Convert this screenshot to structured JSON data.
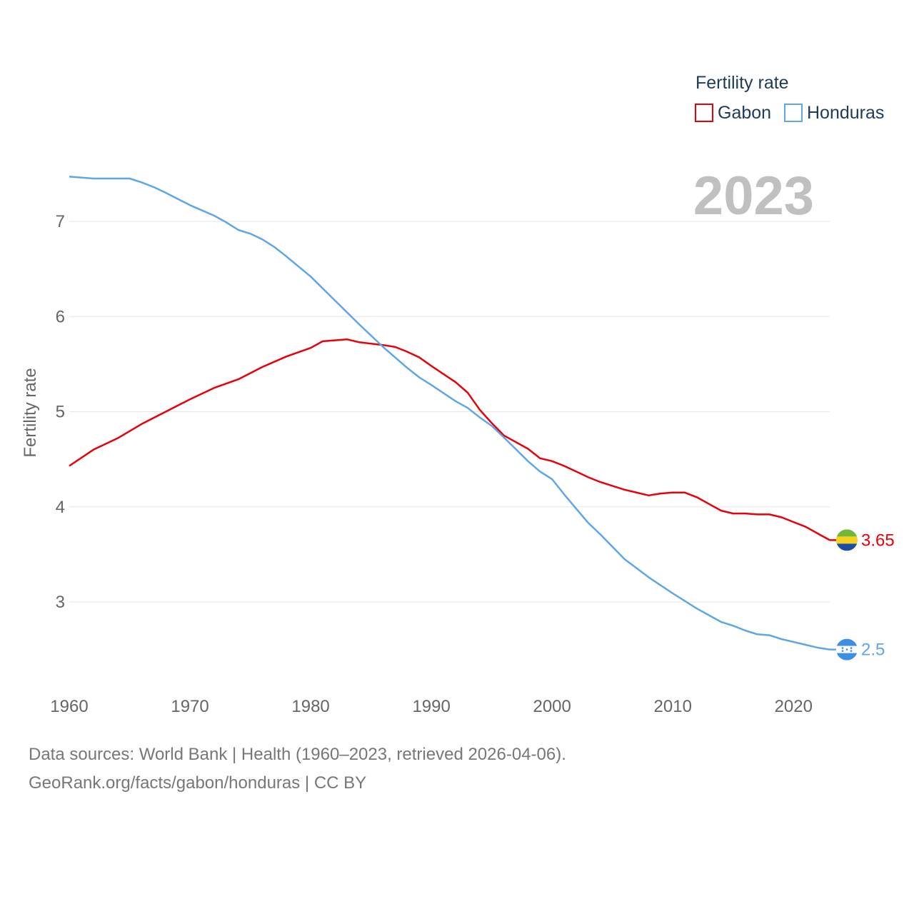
{
  "chart_data": {
    "type": "line",
    "title": "Fertility rate",
    "xlabel": "",
    "ylabel": "Fertility rate",
    "xlim": [
      1960,
      2023
    ],
    "ylim": [
      2.3,
      7.6
    ],
    "year_label": "2023",
    "x_ticks": [
      1960,
      1970,
      1980,
      1990,
      2000,
      2010,
      2020
    ],
    "y_ticks": [
      3,
      4,
      5,
      6,
      7
    ],
    "x_tick_labels": [
      "1960",
      "1970",
      "1980",
      "1990",
      "2000",
      "2010",
      "2020"
    ],
    "y_tick_labels": [
      "3",
      "4",
      "5",
      "6",
      "7"
    ],
    "legend": {
      "title": "Fertility rate",
      "position": "top-right"
    },
    "series": [
      {
        "name": "Gabon",
        "color": "#e8000b",
        "end_label": "3.65",
        "x": [
          1960,
          1962,
          1964,
          1966,
          1968,
          1970,
          1972,
          1974,
          1976,
          1978,
          1980,
          1981,
          1982,
          1983,
          1984,
          1986,
          1987,
          1988,
          1989,
          1990,
          1992,
          1993,
          1994,
          1995,
          1996,
          1998,
          1999,
          2000,
          2001,
          2002,
          2003,
          2004,
          2006,
          2008,
          2009,
          2010,
          2011,
          2012,
          2013,
          2014,
          2015,
          2016,
          2017,
          2018,
          2019,
          2020,
          2021,
          2022,
          2023
        ],
        "values": [
          4.43,
          4.6,
          4.72,
          4.87,
          5.0,
          5.13,
          5.25,
          5.34,
          5.47,
          5.58,
          5.67,
          5.74,
          5.75,
          5.76,
          5.73,
          5.7,
          5.68,
          5.63,
          5.57,
          5.48,
          5.31,
          5.2,
          5.02,
          4.88,
          4.75,
          4.61,
          4.51,
          4.48,
          4.43,
          4.37,
          4.31,
          4.26,
          4.18,
          4.12,
          4.14,
          4.15,
          4.15,
          4.1,
          4.03,
          3.96,
          3.93,
          3.93,
          3.92,
          3.92,
          3.89,
          3.84,
          3.79,
          3.72,
          3.65
        ]
      },
      {
        "name": "Honduras",
        "color": "#5fa6e6",
        "end_label": "2.5",
        "x": [
          1960,
          1962,
          1964,
          1965,
          1966,
          1967,
          1968,
          1970,
          1972,
          1973,
          1974,
          1975,
          1976,
          1977,
          1978,
          1980,
          1982,
          1984,
          1986,
          1988,
          1989,
          1990,
          1992,
          1993,
          1994,
          1995,
          1996,
          1998,
          1999,
          2000,
          2001,
          2002,
          2003,
          2004,
          2006,
          2008,
          2010,
          2012,
          2014,
          2015,
          2016,
          2017,
          2018,
          2019,
          2020,
          2021,
          2022,
          2023
        ],
        "values": [
          7.47,
          7.45,
          7.45,
          7.45,
          7.41,
          7.36,
          7.3,
          7.17,
          7.06,
          6.99,
          6.91,
          6.87,
          6.81,
          6.73,
          6.63,
          6.42,
          6.17,
          5.92,
          5.68,
          5.46,
          5.36,
          5.28,
          5.11,
          5.04,
          4.94,
          4.85,
          4.73,
          4.48,
          4.37,
          4.29,
          4.13,
          3.98,
          3.83,
          3.71,
          3.45,
          3.26,
          3.09,
          2.93,
          2.79,
          2.75,
          2.7,
          2.66,
          2.65,
          2.61,
          2.58,
          2.55,
          2.52,
          2.5
        ]
      }
    ]
  },
  "footer": {
    "line1": "Data sources: World Bank | Health (1960–2023, retrieved 2026-04-06).",
    "line2": "GeoRank.org/facts/gabon/honduras | CC BY"
  }
}
